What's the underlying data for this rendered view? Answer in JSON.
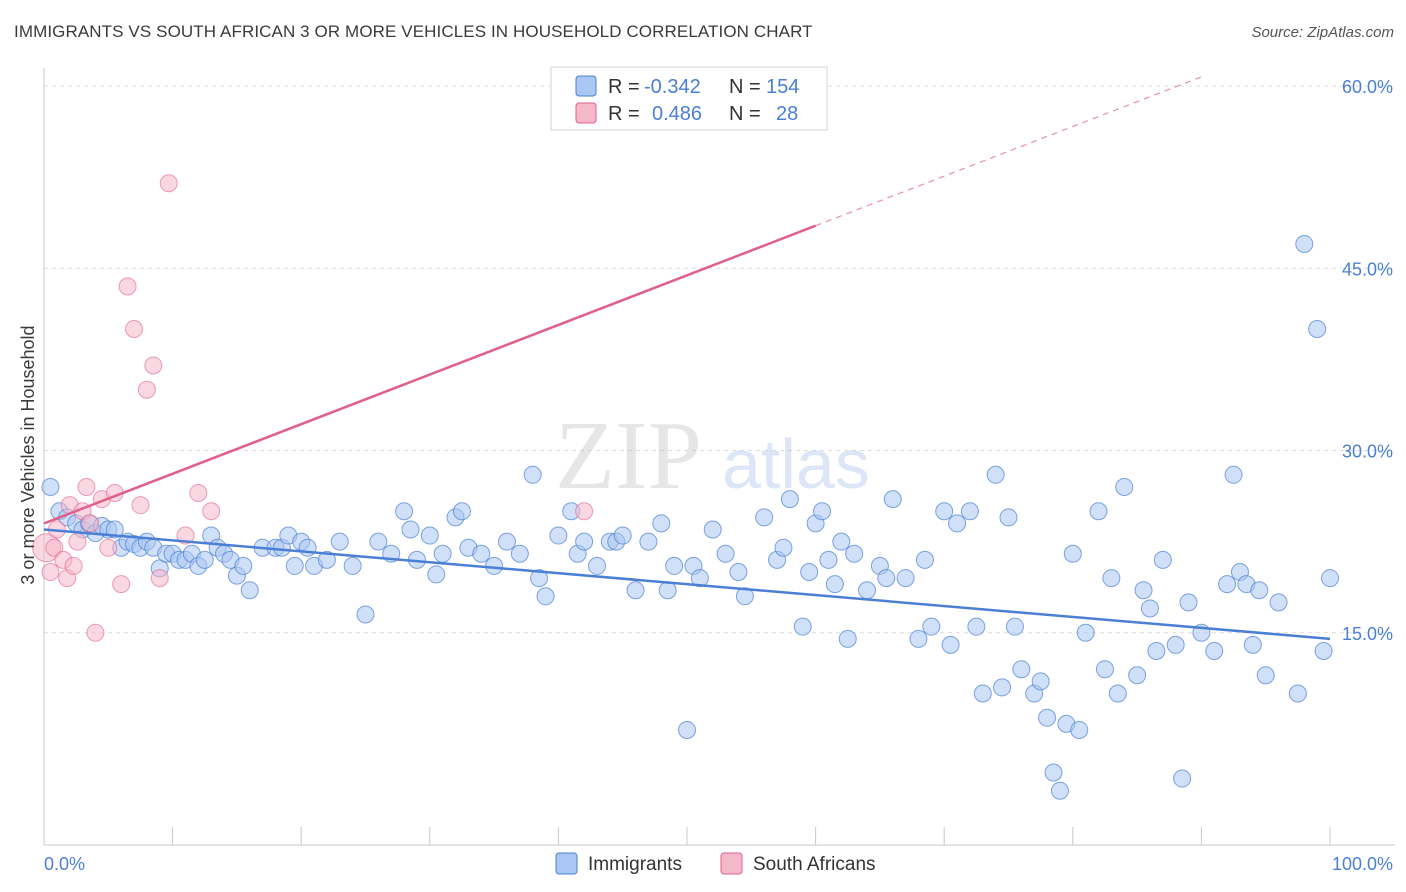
{
  "title": "IMMIGRANTS VS SOUTH AFRICAN 3 OR MORE VEHICLES IN HOUSEHOLD CORRELATION CHART",
  "source": "Source: ZipAtlas.com",
  "watermark": {
    "zip": "ZIP",
    "atlas": "atlas"
  },
  "colors": {
    "blue": "#4a7fd4",
    "blue_fill": "#a9c7f2",
    "pink": "#e0608a",
    "pink_fill": "#f5b8cb",
    "grid": "#dcdcdc"
  },
  "legend": {
    "rows": [
      {
        "r_label": "R =",
        "r_value": "-0.342",
        "n_label": "N =",
        "n_value": "154"
      },
      {
        "r_label": "R =",
        "r_value": "0.486",
        "n_label": "N =",
        "n_value": "28"
      }
    ]
  },
  "chart_data": {
    "type": "scatter",
    "ylabel": "3 or more Vehicles in Household",
    "xlabel": "",
    "xlim": [
      0,
      100
    ],
    "ylim": [
      0,
      60
    ],
    "x_ticks": [
      "0.0%",
      "100.0%"
    ],
    "y_ticks": [
      {
        "v": 15,
        "label": "15.0%"
      },
      {
        "v": 30,
        "label": "30.0%"
      },
      {
        "v": 45,
        "label": "45.0%"
      },
      {
        "v": 60,
        "label": "60.0%"
      }
    ],
    "grid": true,
    "series": [
      {
        "name": "Immigrants",
        "trend": {
          "x0": 0,
          "y0": 23.5,
          "x1": 100,
          "y1": 14.5
        },
        "points": [
          [
            0.5,
            27
          ],
          [
            1.2,
            25
          ],
          [
            1.8,
            24.5
          ],
          [
            2.5,
            24
          ],
          [
            3,
            23.5
          ],
          [
            3.5,
            24
          ],
          [
            4,
            23.2
          ],
          [
            4.5,
            23.8
          ],
          [
            5,
            23.5
          ],
          [
            5.5,
            23.5
          ],
          [
            6,
            22
          ],
          [
            6.5,
            22.5
          ],
          [
            7,
            22.3
          ],
          [
            7.5,
            22
          ],
          [
            8,
            22.5
          ],
          [
            8.5,
            22
          ],
          [
            9,
            20.3
          ],
          [
            9.5,
            21.5
          ],
          [
            10,
            21.5
          ],
          [
            10.5,
            21
          ],
          [
            11,
            21
          ],
          [
            11.5,
            21.5
          ],
          [
            12,
            20.5
          ],
          [
            12.5,
            21
          ],
          [
            13,
            23
          ],
          [
            13.5,
            22
          ],
          [
            14,
            21.5
          ],
          [
            14.5,
            21
          ],
          [
            15,
            19.7
          ],
          [
            15.5,
            20.5
          ],
          [
            16,
            18.5
          ],
          [
            17,
            22
          ],
          [
            18,
            22
          ],
          [
            18.5,
            22
          ],
          [
            19,
            23
          ],
          [
            19.5,
            20.5
          ],
          [
            20,
            22.5
          ],
          [
            20.5,
            22
          ],
          [
            21,
            20.5
          ],
          [
            22,
            21
          ],
          [
            23,
            22.5
          ],
          [
            24,
            20.5
          ],
          [
            25,
            16.5
          ],
          [
            26,
            22.5
          ],
          [
            27,
            21.5
          ],
          [
            28,
            25
          ],
          [
            28.5,
            23.5
          ],
          [
            29,
            21
          ],
          [
            30,
            23
          ],
          [
            30.5,
            19.8
          ],
          [
            31,
            21.5
          ],
          [
            32,
            24.5
          ],
          [
            32.5,
            25
          ],
          [
            33,
            22
          ],
          [
            34,
            21.5
          ],
          [
            35,
            20.5
          ],
          [
            36,
            22.5
          ],
          [
            37,
            21.5
          ],
          [
            38,
            28
          ],
          [
            38.5,
            19.5
          ],
          [
            39,
            18
          ],
          [
            40,
            23
          ],
          [
            41,
            25
          ],
          [
            41.5,
            21.5
          ],
          [
            42,
            22.5
          ],
          [
            43,
            20.5
          ],
          [
            44,
            22.5
          ],
          [
            44.5,
            22.5
          ],
          [
            45,
            23
          ],
          [
            46,
            18.5
          ],
          [
            47,
            22.5
          ],
          [
            48,
            24
          ],
          [
            48.5,
            18.5
          ],
          [
            49,
            20.5
          ],
          [
            50,
            7
          ],
          [
            50.5,
            20.5
          ],
          [
            51,
            19.5
          ],
          [
            52,
            23.5
          ],
          [
            53,
            21.5
          ],
          [
            54,
            20
          ],
          [
            54.5,
            18
          ],
          [
            56,
            24.5
          ],
          [
            57,
            21
          ],
          [
            57.5,
            22
          ],
          [
            58,
            26
          ],
          [
            59,
            15.5
          ],
          [
            59.5,
            20
          ],
          [
            60,
            24
          ],
          [
            60.5,
            25
          ],
          [
            61,
            21
          ],
          [
            61.5,
            19
          ],
          [
            62,
            22.5
          ],
          [
            62.5,
            14.5
          ],
          [
            63,
            21.5
          ],
          [
            64,
            18.5
          ],
          [
            65,
            20.5
          ],
          [
            65.5,
            19.5
          ],
          [
            66,
            26
          ],
          [
            67,
            19.5
          ],
          [
            68,
            14.5
          ],
          [
            68.5,
            21
          ],
          [
            69,
            15.5
          ],
          [
            70,
            25
          ],
          [
            70.5,
            14
          ],
          [
            71,
            24
          ],
          [
            72,
            25
          ],
          [
            72.5,
            15.5
          ],
          [
            73,
            10
          ],
          [
            74,
            28
          ],
          [
            74.5,
            10.5
          ],
          [
            75,
            24.5
          ],
          [
            75.5,
            15.5
          ],
          [
            76,
            12
          ],
          [
            77,
            10
          ],
          [
            77.5,
            11
          ],
          [
            78,
            8
          ],
          [
            78.5,
            3.5
          ],
          [
            79,
            2
          ],
          [
            79.5,
            7.5
          ],
          [
            80,
            21.5
          ],
          [
            80.5,
            7
          ],
          [
            81,
            15
          ],
          [
            82,
            25
          ],
          [
            82.5,
            12
          ],
          [
            83,
            19.5
          ],
          [
            83.5,
            10
          ],
          [
            84,
            27
          ],
          [
            85,
            11.5
          ],
          [
            85.5,
            18.5
          ],
          [
            86,
            17
          ],
          [
            86.5,
            13.5
          ],
          [
            87,
            21
          ],
          [
            88,
            14
          ],
          [
            88.5,
            3
          ],
          [
            89,
            17.5
          ],
          [
            90,
            15
          ],
          [
            91,
            13.5
          ],
          [
            92,
            19
          ],
          [
            92.5,
            28
          ],
          [
            93,
            20
          ],
          [
            93.5,
            19
          ],
          [
            94,
            14
          ],
          [
            94.5,
            18.5
          ],
          [
            95,
            11.5
          ],
          [
            96,
            17.5
          ],
          [
            97.5,
            10
          ],
          [
            98,
            47
          ],
          [
            99.5,
            13.5
          ],
          [
            99,
            40
          ],
          [
            100,
            19.5
          ]
        ]
      },
      {
        "name": "South Africans",
        "trend": {
          "x0": 0,
          "y0": 24,
          "x1": 60,
          "y1": 48.5
        },
        "points": [
          [
            0.2,
            22
          ],
          [
            0.5,
            20
          ],
          [
            0.8,
            22
          ],
          [
            1,
            23.5
          ],
          [
            1.5,
            21
          ],
          [
            1.8,
            19.5
          ],
          [
            2,
            25.5
          ],
          [
            2.3,
            20.5
          ],
          [
            2.6,
            22.5
          ],
          [
            3,
            25
          ],
          [
            3.3,
            27
          ],
          [
            3.6,
            24
          ],
          [
            4,
            15
          ],
          [
            4.5,
            26
          ],
          [
            5,
            22
          ],
          [
            5.5,
            26.5
          ],
          [
            6,
            19
          ],
          [
            6.5,
            43.5
          ],
          [
            7,
            40
          ],
          [
            7.5,
            25.5
          ],
          [
            8,
            35
          ],
          [
            8.5,
            37
          ],
          [
            9,
            19.5
          ],
          [
            9.7,
            52
          ],
          [
            11,
            23
          ],
          [
            12,
            26.5
          ],
          [
            13,
            25
          ],
          [
            42,
            25
          ]
        ]
      }
    ]
  },
  "bottom_legend": [
    {
      "label": "Immigrants",
      "color": "blue"
    },
    {
      "label": "South Africans",
      "color": "pink"
    }
  ]
}
